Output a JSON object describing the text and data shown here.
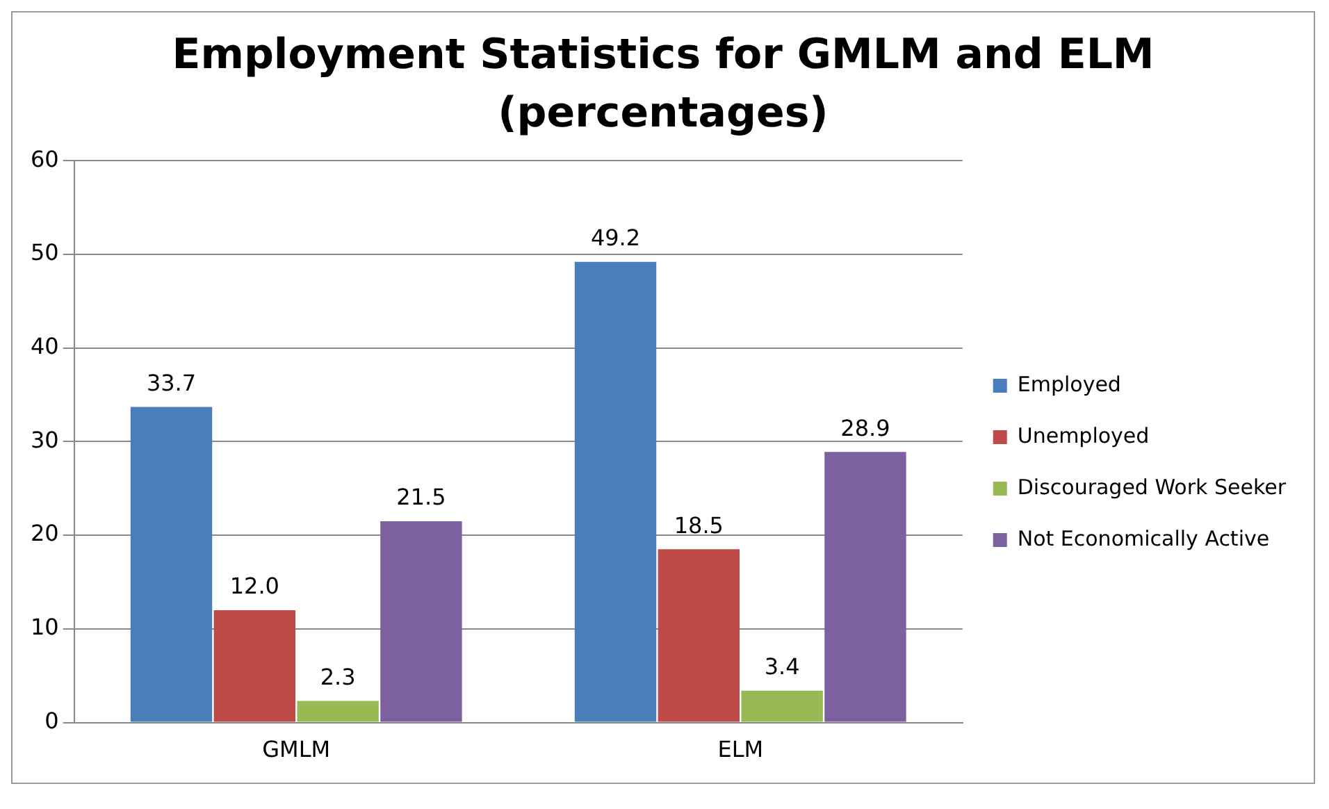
{
  "chart_data": {
    "type": "bar",
    "title": "Employment Statistics for GMLM and ELM (percentages)",
    "categories": [
      "GMLM",
      "ELM"
    ],
    "series": [
      {
        "name": "Employed",
        "color": "#4a7ebb",
        "values": [
          33.7,
          49.2
        ],
        "value_labels": [
          "33.7",
          "49.2"
        ]
      },
      {
        "name": "Unemployed",
        "color": "#be4b48",
        "values": [
          12.0,
          18.5
        ],
        "value_labels": [
          "12.0",
          "18.5"
        ]
      },
      {
        "name": "Discouraged Work Seeker",
        "color": "#98b954",
        "values": [
          2.3,
          3.4
        ],
        "value_labels": [
          "2.3",
          "3.4"
        ]
      },
      {
        "name": "Not Economically Active",
        "color": "#7d60a0",
        "values": [
          21.5,
          28.9
        ],
        "value_labels": [
          "21.5",
          "28.9"
        ]
      }
    ],
    "ylim": [
      0,
      60
    ],
    "yticks": [
      0,
      10,
      20,
      30,
      40,
      50,
      60
    ],
    "grid": "y",
    "legend": "right"
  }
}
